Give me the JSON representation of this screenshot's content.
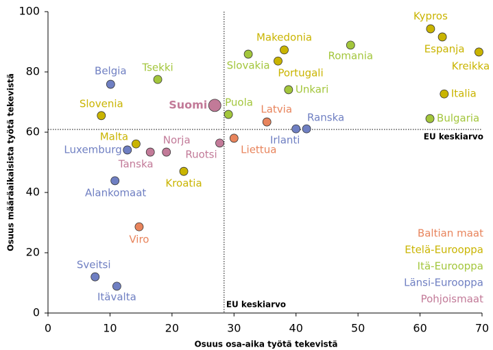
{
  "chart_data": {
    "type": "scatter",
    "xlabel": "Osuus osa-aika työtä tekevistä",
    "ylabel": "Osuus määräaikaisista työtä tekevistä",
    "xlim": [
      0,
      70
    ],
    "xticks": [
      0,
      10,
      20,
      30,
      40,
      50,
      60,
      70
    ],
    "ylim": [
      0,
      100
    ],
    "yticks": [
      0,
      20,
      40,
      60,
      80,
      100
    ],
    "reference_lines": [
      {
        "axis": "x",
        "value": 28.4,
        "label": "EU keskiarvo"
      },
      {
        "axis": "y",
        "value": 60.9,
        "label": "EU keskiarvo"
      }
    ],
    "legend": "lower right",
    "series": [
      {
        "name": "Baltian maat",
        "color": "#e8845c",
        "labels": [
          "Latvia",
          "Liettua",
          "Viro"
        ],
        "x": [
          35.3,
          30.0,
          14.7
        ],
        "values": [
          63.4,
          58.0,
          28.6
        ]
      },
      {
        "name": "Etelä-Eurooppa",
        "color": "#c9b400",
        "labels": [
          "Kypros",
          "Espanja",
          "Kreikka",
          "Italia",
          "Makedonia",
          "Portugali",
          "Slovenia",
          "Malta",
          "Kroatia"
        ],
        "x": [
          61.7,
          63.6,
          69.5,
          63.9,
          38.1,
          37.1,
          8.6,
          14.2,
          21.9
        ],
        "values": [
          94.3,
          91.6,
          86.6,
          72.7,
          87.3,
          83.6,
          65.5,
          56.1,
          47.0
        ]
      },
      {
        "name": "Itä-Eurooppa",
        "color": "#a3c63c",
        "labels": [
          "Slovakia",
          "Romania",
          "Unkari",
          "Bulgaria",
          "Tsekki",
          "Puola"
        ],
        "x": [
          32.3,
          48.8,
          38.8,
          61.6,
          17.7,
          29.1
        ],
        "values": [
          85.9,
          88.9,
          74.1,
          64.5,
          77.5,
          65.9
        ]
      },
      {
        "name": "Länsi-Eurooppa",
        "color": "#6f7fc2",
        "labels": [
          "Belgia",
          "Ranska",
          "Irlanti",
          "Luxemburg",
          "Alankomaat",
          "Sveitsi",
          "Itävalta"
        ],
        "x": [
          10.1,
          41.7,
          40.0,
          12.8,
          10.8,
          7.6,
          11.1
        ],
        "values": [
          75.9,
          61.1,
          61.1,
          54.1,
          43.9,
          12.0,
          8.9
        ]
      },
      {
        "name": "Pohjoismaat",
        "color": "#c27a98",
        "labels": [
          "Suomi",
          "Tanska",
          "Norja",
          "Ruotsi"
        ],
        "x": [
          26.9,
          16.5,
          19.1,
          27.7
        ],
        "values": [
          68.9,
          53.4,
          53.4,
          56.4
        ]
      }
    ]
  }
}
